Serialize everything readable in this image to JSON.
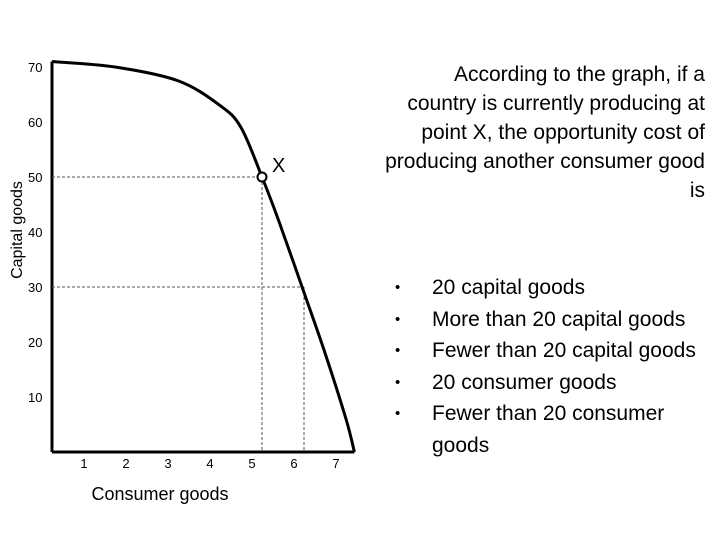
{
  "chart_data": {
    "type": "line",
    "title": "",
    "xlabel": "Consumer goods",
    "ylabel": "Capital goods",
    "x_ticks": [
      1,
      2,
      3,
      4,
      5,
      6,
      7
    ],
    "x_tick_labels": [
      "1",
      "2",
      "3",
      "4",
      "5",
      "6",
      "7"
    ],
    "y_ticks": [
      10,
      20,
      30,
      40,
      50,
      60,
      70
    ],
    "y_tick_labels": [
      "10",
      "20",
      "30",
      "40",
      "50",
      "60",
      "70"
    ],
    "xlim": [
      0,
      7.2
    ],
    "ylim": [
      0,
      71
    ],
    "grid": false,
    "series": [
      {
        "x": [
          0,
          1.5,
          3,
          4,
          4.5,
          5,
          5.4,
          6,
          6.5,
          7,
          7.2
        ],
        "y": [
          71,
          70,
          67.5,
          63,
          59,
          50,
          42,
          29,
          18,
          6,
          0
        ]
      }
    ],
    "point": {
      "label": "X",
      "x": 5,
      "y": 50
    },
    "guides": [
      {
        "x": 5,
        "y": 50
      },
      {
        "x": 6,
        "y": 30
      }
    ],
    "colors": {
      "line": "#000000",
      "guide": "#555555"
    }
  },
  "question": {
    "text": "According to the graph, if a country is currently producing at point X, the opportunity cost of producing another consumer good is"
  },
  "options": [
    {
      "label": "20 capital goods"
    },
    {
      "label": "More than 20 capital goods"
    },
    {
      "label": "Fewer than 20 capital goods"
    },
    {
      "label": "20 consumer goods"
    },
    {
      "label": "Fewer than 20 consumer goods"
    }
  ]
}
